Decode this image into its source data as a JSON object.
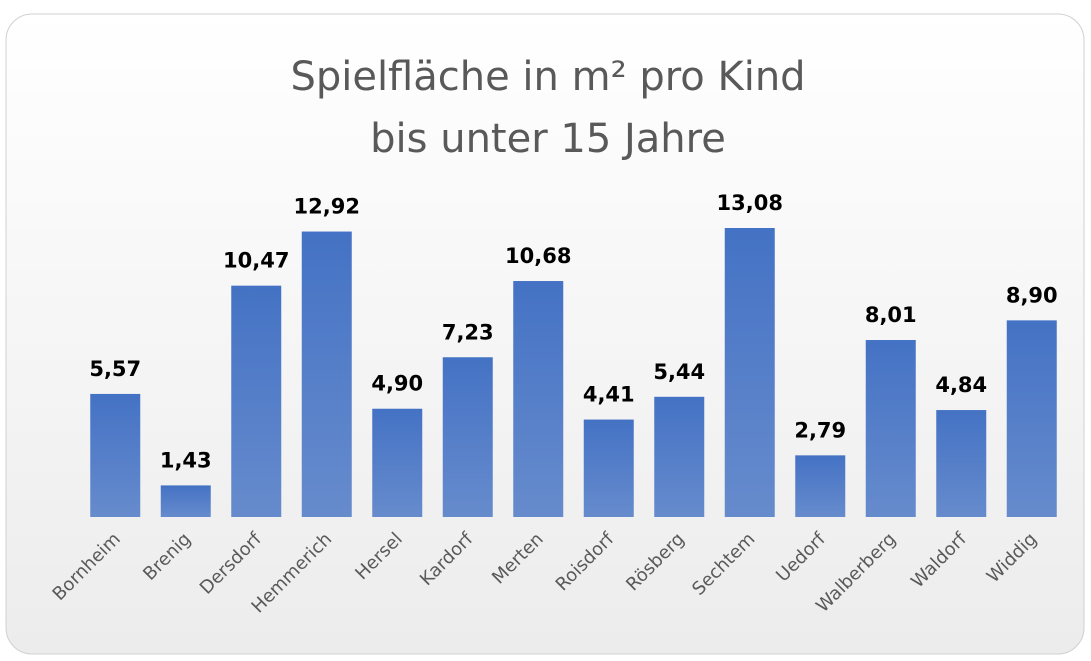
{
  "chart_data": {
    "type": "bar",
    "title": [
      "Spielfläche in m² pro Kind",
      "bis unter 15 Jahre"
    ],
    "categories": [
      "Bornheim",
      "Brenig",
      "Dersdorf",
      "Hemmerich",
      "Hersel",
      "Kardorf",
      "Merten",
      "Roisdorf",
      "Rösberg",
      "Sechtem",
      "Uedorf",
      "Walberberg",
      "Waldorf",
      "Widdig"
    ],
    "values": [
      5.57,
      1.43,
      10.47,
      12.92,
      4.9,
      7.23,
      10.68,
      4.41,
      5.44,
      13.08,
      2.79,
      8.01,
      4.84,
      8.9
    ],
    "value_labels": [
      "5,57",
      "1,43",
      "10,47",
      "12,92",
      "4,90",
      "7,23",
      "10,68",
      "4,41",
      "5,44",
      "13,08",
      "2,79",
      "8,01",
      "4,84",
      "8,90"
    ],
    "color": "#4472c4"
  }
}
